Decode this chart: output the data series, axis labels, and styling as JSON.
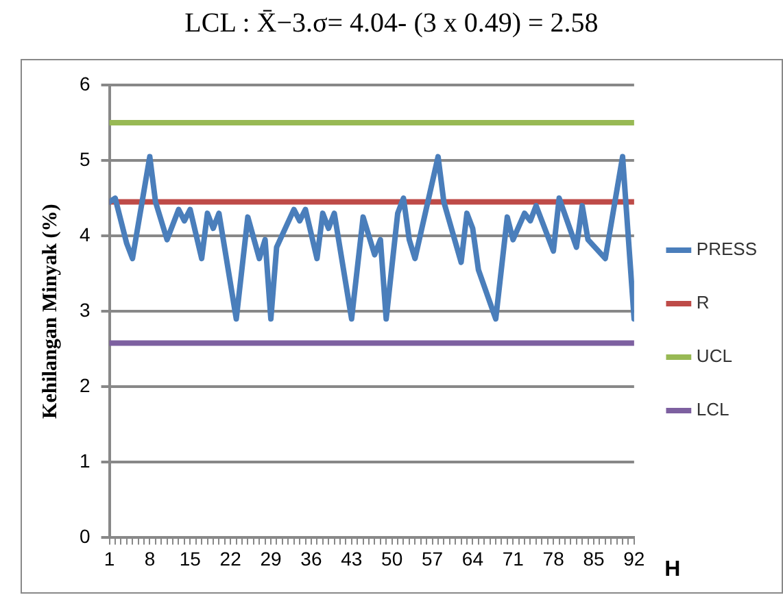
{
  "chart_data": {
    "type": "line",
    "xlabel": "H",
    "ylabel": "Kehilangan Minyak (%)",
    "annotations": [
      "LCL : X̄−3.σ= 4.04- (3 x 0.49) = 2.58"
    ],
    "xlim": [
      1,
      92
    ],
    "ylim": [
      0,
      6
    ],
    "yticks": [
      0,
      1,
      2,
      3,
      4,
      5,
      6
    ],
    "xticks": [
      1,
      {
        "value": 2,
        "label": null
      },
      {
        "value": 3,
        "label": null
      },
      {
        "value": 4,
        "label": null
      },
      {
        "value": 5,
        "label": null
      },
      {
        "value": 6,
        "label": null
      },
      {
        "value": 7,
        "label": null
      },
      8,
      {
        "value": 9,
        "label": null
      },
      {
        "value": 10,
        "label": null
      },
      {
        "value": 11,
        "label": null
      },
      {
        "value": 12,
        "label": null
      },
      {
        "value": 13,
        "label": null
      },
      {
        "value": 14,
        "label": null
      },
      15,
      {
        "value": 16,
        "label": null
      },
      {
        "value": 17,
        "label": null
      },
      {
        "value": 18,
        "label": null
      },
      {
        "value": 19,
        "label": null
      },
      {
        "value": 20,
        "label": null
      },
      {
        "value": 21,
        "label": null
      },
      22,
      {
        "value": 23,
        "label": null
      },
      {
        "value": 24,
        "label": null
      },
      {
        "value": 25,
        "label": null
      },
      {
        "value": 26,
        "label": null
      },
      {
        "value": 27,
        "label": null
      },
      {
        "value": 28,
        "label": null
      },
      29,
      {
        "value": 30,
        "label": null
      },
      {
        "value": 31,
        "label": null
      },
      {
        "value": 32,
        "label": null
      },
      {
        "value": 33,
        "label": null
      },
      {
        "value": 34,
        "label": null
      },
      {
        "value": 35,
        "label": null
      },
      36,
      {
        "value": 37,
        "label": null
      },
      {
        "value": 38,
        "label": null
      },
      {
        "value": 39,
        "label": null
      },
      {
        "value": 40,
        "label": null
      },
      {
        "value": 41,
        "label": null
      },
      {
        "value": 42,
        "label": null
      },
      43,
      {
        "value": 44,
        "label": null
      },
      {
        "value": 45,
        "label": null
      },
      {
        "value": 46,
        "label": null
      },
      {
        "value": 47,
        "label": null
      },
      {
        "value": 48,
        "label": null
      },
      {
        "value": 49,
        "label": null
      },
      50,
      {
        "value": 51,
        "label": null
      },
      {
        "value": 52,
        "label": null
      },
      {
        "value": 53,
        "label": null
      },
      {
        "value": 54,
        "label": null
      },
      {
        "value": 55,
        "label": null
      },
      {
        "value": 56,
        "label": null
      },
      57,
      {
        "value": 58,
        "label": null
      },
      {
        "value": 59,
        "label": null
      },
      {
        "value": 60,
        "label": null
      },
      {
        "value": 61,
        "label": null
      },
      {
        "value": 62,
        "label": null
      },
      {
        "value": 63,
        "label": null
      },
      64,
      {
        "value": 65,
        "label": null
      },
      {
        "value": 66,
        "label": null
      },
      {
        "value": 67,
        "label": null
      },
      {
        "value": 68,
        "label": null
      },
      {
        "value": 69,
        "label": null
      },
      {
        "value": 70,
        "label": null
      },
      71,
      {
        "value": 72,
        "label": null
      },
      {
        "value": 73,
        "label": null
      },
      {
        "value": 74,
        "label": null
      },
      {
        "value": 75,
        "label": null
      },
      {
        "value": 76,
        "label": null
      },
      {
        "value": 77,
        "label": null
      },
      78,
      {
        "value": 79,
        "label": null
      },
      {
        "value": 80,
        "label": null
      },
      {
        "value": 81,
        "label": null
      },
      {
        "value": 82,
        "label": null
      },
      {
        "value": 83,
        "label": null
      },
      {
        "value": 84,
        "label": null
      },
      85,
      {
        "value": 86,
        "label": null
      },
      {
        "value": 87,
        "label": null
      },
      {
        "value": 88,
        "label": null
      },
      {
        "value": 89,
        "label": null
      },
      {
        "value": 90,
        "label": null
      },
      {
        "value": 91,
        "label": null
      },
      92
    ],
    "grid": "y",
    "legend": "right",
    "marker": "none",
    "line_style": "solid",
    "series": [
      {
        "name": "PRESS",
        "color": "#4a7ebb",
        "x": [
          1,
          2,
          4,
          5,
          8,
          9,
          11,
          13,
          14,
          15,
          17,
          18,
          19,
          20,
          23,
          25,
          27,
          28,
          29,
          30,
          33,
          34,
          35,
          37,
          38,
          39,
          40,
          43,
          45,
          47,
          48,
          49,
          51,
          52,
          53,
          54,
          58,
          59,
          62,
          63,
          64,
          65,
          68,
          70,
          71,
          73,
          74,
          75,
          78,
          79,
          82,
          83,
          84,
          87,
          90,
          92
        ],
        "values": [
          4.45,
          4.5,
          3.9,
          3.7,
          5.05,
          4.45,
          3.95,
          4.35,
          4.2,
          4.35,
          3.7,
          4.3,
          4.1,
          4.3,
          2.9,
          4.25,
          3.7,
          3.95,
          2.9,
          3.85,
          4.35,
          4.2,
          4.35,
          3.7,
          4.3,
          4.1,
          4.3,
          2.9,
          4.25,
          3.75,
          3.95,
          2.9,
          4.3,
          4.5,
          3.95,
          3.7,
          5.05,
          4.45,
          3.65,
          4.3,
          4.1,
          3.55,
          2.9,
          4.25,
          3.95,
          4.3,
          4.2,
          4.4,
          3.8,
          4.5,
          3.85,
          4.4,
          3.95,
          3.7,
          5.05,
          2.9
        ]
      },
      {
        "name": "R",
        "color": "#be4b48",
        "x": [
          1,
          92
        ],
        "values": [
          4.45,
          4.45
        ]
      },
      {
        "name": "UCL",
        "color": "#98b954",
        "x": [
          1,
          92
        ],
        "values": [
          5.5,
          5.5
        ]
      },
      {
        "name": "LCL",
        "color": "#7d60a0",
        "x": [
          1,
          92
        ],
        "values": [
          2.58,
          2.58
        ]
      }
    ]
  }
}
